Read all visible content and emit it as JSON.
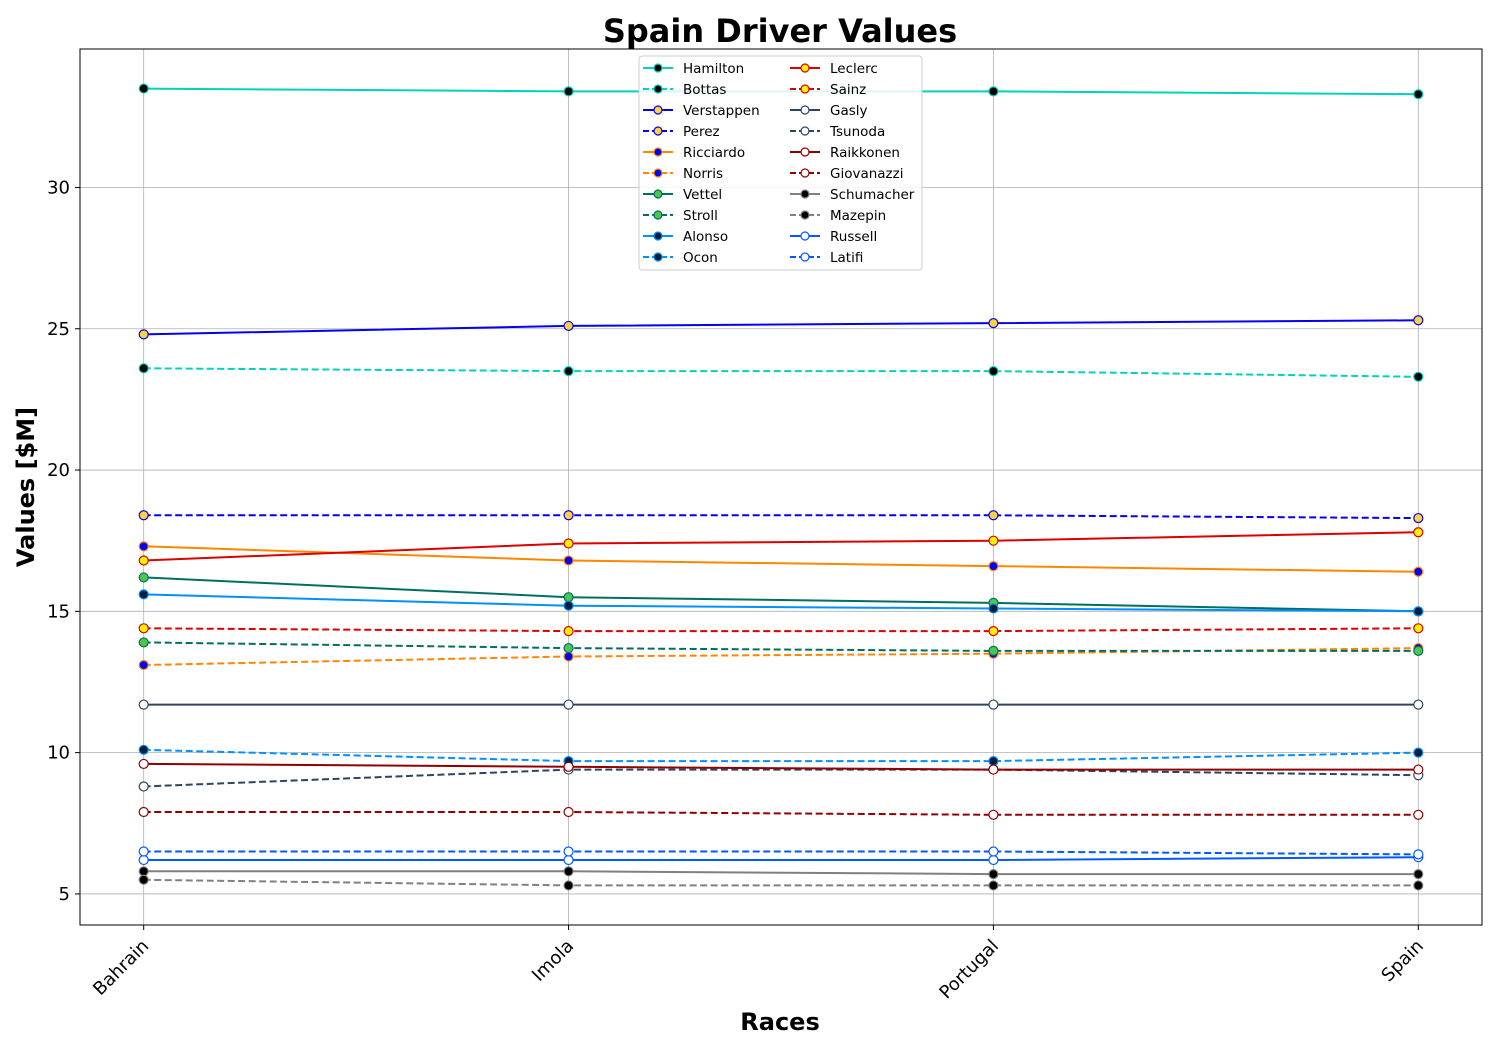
{
  "chart_data": {
    "type": "line",
    "title": "Spain Driver Values",
    "xlabel": "Races",
    "ylabel": "Values [$M]",
    "categories": [
      "Bahrain",
      "Imola",
      "Portugal",
      "Spain"
    ],
    "ylim": [
      3.9,
      34.9
    ],
    "yticks": [
      5,
      10,
      15,
      20,
      25,
      30
    ],
    "grid": true,
    "legend_position": "top-center",
    "legend_columns": 2,
    "series": [
      {
        "name": "Hamilton",
        "values": [
          33.5,
          33.4,
          33.4,
          33.3
        ],
        "color": "#00d2be",
        "dash": "solid",
        "marker_fill": "#000000"
      },
      {
        "name": "Bottas",
        "values": [
          23.6,
          23.5,
          23.5,
          23.3
        ],
        "color": "#00d2be",
        "dash": "dashed",
        "marker_fill": "#000000"
      },
      {
        "name": "Verstappen",
        "values": [
          24.8,
          25.1,
          25.2,
          25.3
        ],
        "color": "#0600ef",
        "dash": "solid",
        "marker_fill": "#ffd23f"
      },
      {
        "name": "Perez",
        "values": [
          18.4,
          18.4,
          18.4,
          18.3
        ],
        "color": "#0600ef",
        "dash": "dashed",
        "marker_fill": "#ffd23f"
      },
      {
        "name": "Ricciardo",
        "values": [
          17.3,
          16.8,
          16.6,
          16.4
        ],
        "color": "#ff8700",
        "dash": "solid",
        "marker_fill": "#0000ff"
      },
      {
        "name": "Norris",
        "values": [
          13.1,
          13.4,
          13.5,
          13.7
        ],
        "color": "#ff8700",
        "dash": "dashed",
        "marker_fill": "#0000ff"
      },
      {
        "name": "Vettel",
        "values": [
          16.2,
          15.5,
          15.3,
          15.0
        ],
        "color": "#006f62",
        "dash": "solid",
        "marker_fill": "#4ec54e"
      },
      {
        "name": "Stroll",
        "values": [
          13.9,
          13.7,
          13.6,
          13.6
        ],
        "color": "#006f62",
        "dash": "dashed",
        "marker_fill": "#4ec54e"
      },
      {
        "name": "Alonso",
        "values": [
          15.6,
          15.2,
          15.1,
          15.0
        ],
        "color": "#0090ff",
        "dash": "solid",
        "marker_fill": "#001e3c"
      },
      {
        "name": "Ocon",
        "values": [
          10.1,
          9.7,
          9.7,
          10.0
        ],
        "color": "#0090ff",
        "dash": "dashed",
        "marker_fill": "#001e3c"
      },
      {
        "name": "Leclerc",
        "values": [
          16.8,
          17.4,
          17.5,
          17.8
        ],
        "color": "#dc0000",
        "dash": "solid",
        "marker_fill": "#fff200"
      },
      {
        "name": "Sainz",
        "values": [
          14.4,
          14.3,
          14.3,
          14.4
        ],
        "color": "#dc0000",
        "dash": "dashed",
        "marker_fill": "#fff200"
      },
      {
        "name": "Gasly",
        "values": [
          11.7,
          11.7,
          11.7,
          11.7
        ],
        "color": "#2b4562",
        "dash": "solid",
        "marker_fill": "#ffffff"
      },
      {
        "name": "Tsunoda",
        "values": [
          8.8,
          9.4,
          9.4,
          9.2
        ],
        "color": "#2b4562",
        "dash": "dashed",
        "marker_fill": "#ffffff"
      },
      {
        "name": "Raikkonen",
        "values": [
          9.6,
          9.5,
          9.4,
          9.4
        ],
        "color": "#900000",
        "dash": "solid",
        "marker_fill": "#ffffff"
      },
      {
        "name": "Giovanazzi",
        "values": [
          7.9,
          7.9,
          7.8,
          7.8
        ],
        "color": "#900000",
        "dash": "dashed",
        "marker_fill": "#ffffff"
      },
      {
        "name": "Schumacher",
        "values": [
          5.8,
          5.8,
          5.7,
          5.7
        ],
        "color": "#808080",
        "dash": "solid",
        "marker_fill": "#000000"
      },
      {
        "name": "Mazepin",
        "values": [
          5.5,
          5.3,
          5.3,
          5.3
        ],
        "color": "#808080",
        "dash": "dashed",
        "marker_fill": "#000000"
      },
      {
        "name": "Russell",
        "values": [
          6.2,
          6.2,
          6.2,
          6.3
        ],
        "color": "#005aff",
        "dash": "solid",
        "marker_fill": "#ffffff"
      },
      {
        "name": "Latifi",
        "values": [
          6.5,
          6.5,
          6.5,
          6.4
        ],
        "color": "#005aff",
        "dash": "dashed",
        "marker_fill": "#ffffff"
      }
    ]
  }
}
